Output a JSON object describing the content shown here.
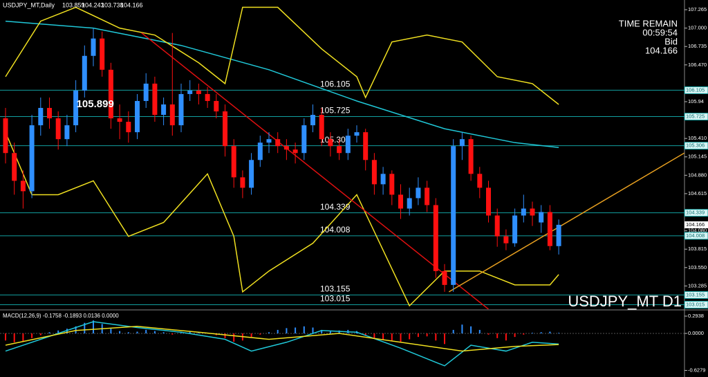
{
  "chart_data": {
    "type": "candlestick",
    "title": "USDJPY_MT,Daily",
    "header_values": [
      103.859,
      104.243,
      103.738,
      104.166
    ],
    "watermark": "USDJPY_MT D1",
    "timer_label": "TIME REMAIN",
    "timer": "00:59:54",
    "bid_label": "Bid",
    "bid": 104.166,
    "annotation": 105.899,
    "annotation_index": 11,
    "up_color": "#2f8fff",
    "down_color": "#ff1010",
    "ylim": [
      102.95,
      107.355
    ],
    "yticks": [
      107.265,
      {
        "value": 107,
        "label": "107.000"
      },
      106.735,
      {
        "value": 106.47,
        "label": "106.470"
      },
      105.94,
      {
        "value": 105.41,
        "label": "105.410"
      },
      105.145,
      {
        "value": 104.88,
        "label": "104.880"
      },
      104.615,
      {
        "value": 104.08,
        "label": "104.080"
      },
      103.815,
      {
        "value": 103.55,
        "label": "103.550"
      },
      103.285
    ],
    "levels": [
      106.105,
      105.725,
      105.306,
      104.339,
      104.008,
      103.155,
      103.015
    ],
    "level_color": "#12a0a0",
    "ohlc": [
      [
        105.7,
        105.85,
        105.05,
        105.2
      ],
      [
        105.2,
        105.35,
        104.6,
        104.8
      ],
      [
        104.8,
        104.95,
        104.4,
        104.65
      ],
      [
        104.65,
        105.75,
        104.55,
        105.6
      ],
      [
        105.6,
        106.0,
        105.45,
        105.85
      ],
      [
        105.85,
        106.0,
        105.55,
        105.7
      ],
      [
        105.7,
        105.8,
        105.25,
        105.4
      ],
      [
        105.4,
        105.75,
        105.3,
        105.6
      ],
      [
        105.6,
        106.25,
        105.5,
        106.1
      ],
      [
        106.1,
        106.75,
        106.0,
        106.6
      ],
      [
        106.6,
        107.0,
        106.45,
        106.85
      ],
      [
        106.85,
        106.95,
        106.3,
        106.4
      ],
      [
        106.4,
        106.5,
        105.55,
        105.7
      ],
      [
        105.7,
        105.9,
        105.4,
        105.65
      ],
      [
        105.65,
        105.8,
        105.35,
        105.5
      ],
      [
        105.5,
        106.05,
        105.4,
        105.95
      ],
      [
        105.95,
        106.35,
        105.85,
        106.2
      ],
      [
        106.2,
        106.3,
        105.65,
        105.75
      ],
      [
        105.75,
        106.0,
        105.6,
        105.9
      ],
      [
        105.9,
        106.93,
        105.45,
        105.6
      ],
      [
        105.6,
        106.2,
        105.5,
        106.05
      ],
      [
        106.05,
        106.25,
        105.95,
        106.1
      ],
      [
        106.1,
        106.2,
        105.9,
        106.05
      ],
      [
        106.05,
        106.15,
        105.85,
        105.95
      ],
      [
        105.95,
        106.05,
        105.7,
        105.8
      ],
      [
        105.8,
        105.9,
        105.15,
        105.3
      ],
      [
        105.3,
        105.4,
        104.7,
        104.85
      ],
      [
        104.85,
        104.95,
        104.55,
        104.7
      ],
      [
        104.7,
        105.2,
        104.6,
        105.1
      ],
      [
        105.1,
        105.45,
        105.0,
        105.35
      ],
      [
        105.35,
        105.5,
        105.2,
        105.4
      ],
      [
        105.4,
        105.5,
        105.2,
        105.3
      ],
      [
        105.3,
        105.4,
        105.1,
        105.25
      ],
      [
        105.25,
        105.35,
        105.05,
        105.2
      ],
      [
        105.2,
        105.7,
        105.1,
        105.6
      ],
      [
        105.6,
        105.9,
        105.5,
        105.75
      ],
      [
        105.75,
        105.85,
        105.3,
        105.4
      ],
      [
        105.4,
        105.5,
        105.15,
        105.3
      ],
      [
        105.3,
        105.4,
        105.1,
        105.2
      ],
      [
        105.2,
        105.55,
        105.1,
        105.45
      ],
      [
        105.45,
        105.6,
        105.35,
        105.5
      ],
      [
        105.5,
        105.55,
        104.95,
        105.1
      ],
      [
        105.1,
        105.2,
        104.6,
        104.75
      ],
      [
        104.75,
        105.0,
        104.6,
        104.9
      ],
      [
        104.9,
        104.95,
        104.45,
        104.6
      ],
      [
        104.6,
        104.75,
        104.25,
        104.4
      ],
      [
        104.4,
        104.7,
        104.3,
        104.55
      ],
      [
        104.55,
        104.85,
        104.45,
        104.7
      ],
      [
        104.7,
        104.8,
        104.35,
        104.45
      ],
      [
        104.45,
        104.55,
        103.4,
        103.5
      ],
      [
        103.5,
        103.6,
        103.2,
        103.3
      ],
      [
        103.3,
        105.4,
        103.2,
        105.3
      ],
      [
        105.3,
        105.5,
        105.1,
        105.4
      ],
      [
        105.4,
        105.45,
        104.8,
        104.9
      ],
      [
        104.9,
        105.0,
        104.55,
        104.7
      ],
      [
        104.7,
        104.8,
        104.2,
        104.3
      ],
      [
        104.3,
        104.4,
        103.85,
        104.0
      ],
      [
        104.0,
        104.1,
        103.8,
        103.9
      ],
      [
        103.9,
        104.4,
        103.85,
        104.3
      ],
      [
        104.3,
        104.6,
        104.2,
        104.4
      ],
      [
        104.4,
        104.5,
        104.15,
        104.3
      ],
      [
        104.2,
        104.45,
        104.05,
        104.35
      ],
      [
        104.35,
        104.45,
        103.8,
        103.86
      ],
      [
        103.859,
        104.243,
        103.738,
        104.166
      ]
    ],
    "overlays": [
      {
        "color": "#20c8d8",
        "x": [
          0,
          10,
          20,
          30,
          40,
          50,
          58,
          63
        ],
        "values": [
          107.1,
          107.0,
          106.75,
          106.4,
          105.95,
          105.55,
          105.35,
          105.28
        ]
      },
      {
        "color": "#f0e020",
        "x": [
          0,
          4,
          8,
          13,
          17,
          22,
          25,
          27,
          31,
          36,
          40,
          41,
          44,
          48,
          52,
          56,
          60,
          63
        ],
        "values": [
          106.3,
          107.1,
          107.3,
          107.0,
          106.9,
          106.5,
          106.2,
          107.3,
          107.3,
          106.7,
          106.3,
          106.0,
          106.8,
          106.9,
          106.8,
          106.3,
          106.2,
          105.9
        ]
      },
      {
        "color": "#f0e020",
        "x": [
          0,
          3,
          6,
          10,
          14,
          18,
          23,
          26,
          27,
          30,
          35,
          40,
          43,
          46,
          50,
          54,
          58,
          62,
          63
        ],
        "values": [
          105.5,
          104.6,
          104.6,
          104.8,
          104.0,
          104.2,
          104.9,
          104.0,
          103.2,
          103.5,
          103.9,
          104.6,
          103.8,
          103.0,
          103.5,
          103.5,
          103.3,
          103.3,
          103.45
        ]
      },
      {
        "color": "#e01010",
        "x": [
          15.5,
          55
        ],
        "values": [
          106.93,
          102.95
        ]
      },
      {
        "color": "#e8a020",
        "x": [
          50.5,
          77.3
        ],
        "values": [
          103.2,
          105.2
        ]
      }
    ],
    "macd": {
      "label": "MACD(12,26,9) -0.1758 -0.1893 0.0136 0.0000",
      "ylim": [
        -0.74,
        0.376
      ],
      "yticks": [
        0.2938,
        {
          "value": 0,
          "label": "0.0000"
        },
        -0.6279
      ],
      "histogram": [
        -0.12,
        -0.15,
        -0.13,
        -0.08,
        -0.03,
        0.02,
        0.05,
        0.08,
        0.12,
        0.18,
        0.22,
        0.16,
        0.08,
        0.04,
        0.02,
        0.03,
        0.06,
        0.04,
        0.02,
        -0.02,
        0.01,
        0.03,
        0.02,
        0.0,
        -0.03,
        -0.08,
        -0.14,
        -0.12,
        -0.06,
        -0.02,
        0.02,
        0.06,
        0.09,
        0.1,
        0.12,
        0.1,
        0.06,
        0.04,
        0.05,
        0.06,
        0.04,
        -0.03,
        -0.08,
        -0.1,
        -0.12,
        -0.14,
        -0.1,
        -0.06,
        -0.05,
        -0.12,
        -0.18,
        0.06,
        0.15,
        0.12,
        0.06,
        -0.02,
        -0.08,
        -0.12,
        -0.06,
        -0.02,
        0.01,
        0.02,
        0.03,
        0.01
      ],
      "lines": [
        {
          "color": "#20c8d8",
          "x": [
            0,
            5,
            10,
            15,
            20,
            25,
            28,
            32,
            36,
            40,
            45,
            50,
            53,
            57,
            60,
            63
          ],
          "values": [
            -0.3,
            -0.05,
            0.2,
            0.1,
            0.02,
            -0.1,
            -0.3,
            -0.15,
            0.05,
            0.02,
            -0.25,
            -0.55,
            -0.2,
            -0.3,
            -0.15,
            -0.18
          ]
        },
        {
          "color": "#f0e020",
          "x": [
            0,
            8,
            15,
            22,
            30,
            38,
            45,
            52,
            58,
            63
          ],
          "values": [
            -0.2,
            0.05,
            0.12,
            0.02,
            -0.1,
            0.0,
            -0.15,
            -0.3,
            -0.22,
            -0.19
          ]
        }
      ]
    }
  }
}
